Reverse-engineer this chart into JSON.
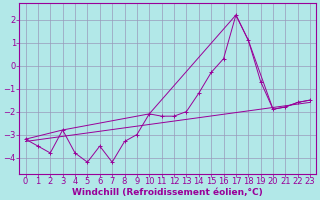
{
  "xlabel": "Windchill (Refroidissement éolien,°C)",
  "bg_color": "#b2e8e8",
  "grid_color": "#9999bb",
  "line_color": "#990099",
  "xlim": [
    -0.5,
    23.5
  ],
  "ylim": [
    -4.7,
    2.7
  ],
  "yticks": [
    -4,
    -3,
    -2,
    -1,
    0,
    1,
    2
  ],
  "xticks": [
    0,
    1,
    2,
    3,
    4,
    5,
    6,
    7,
    8,
    9,
    10,
    11,
    12,
    13,
    14,
    15,
    16,
    17,
    18,
    19,
    20,
    21,
    22,
    23
  ],
  "jagged_x": [
    0,
    1,
    2,
    3,
    4,
    5,
    6,
    7,
    8,
    9,
    10,
    11,
    12,
    13,
    14,
    15,
    16,
    17,
    18,
    19,
    20,
    21,
    22,
    23
  ],
  "jagged_y": [
    -3.2,
    -3.5,
    -3.8,
    -2.8,
    -3.8,
    -4.2,
    -3.5,
    -4.2,
    -3.3,
    -3.0,
    -2.1,
    -2.2,
    -2.2,
    -2.0,
    -1.2,
    -0.3,
    0.3,
    2.2,
    1.1,
    -0.7,
    -1.9,
    -1.8,
    -1.6,
    -1.5
  ],
  "trend_x": [
    0,
    23
  ],
  "trend_y": [
    -3.3,
    -1.6
  ],
  "peak_x": [
    0,
    3,
    10,
    17,
    18,
    20,
    21,
    22,
    23
  ],
  "peak_y": [
    -3.2,
    -2.8,
    -2.1,
    2.2,
    1.1,
    -1.9,
    -1.8,
    -1.6,
    -1.5
  ],
  "font_color": "#990099",
  "font_size": 6.5,
  "tick_font_size": 6.0,
  "xlabel_fontsize": 6.5
}
